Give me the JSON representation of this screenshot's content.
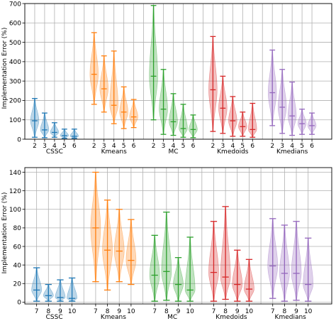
{
  "chart_data": [
    {
      "type": "violin",
      "title": "",
      "xlabel": "",
      "ylabel": "Implementation Error (%)",
      "ylim": [
        0,
        700
      ],
      "yticks": [
        0,
        100,
        200,
        300,
        400,
        500,
        600,
        700
      ],
      "grid": true,
      "methods": [
        "CSSC",
        "Kmeans",
        "MC",
        "Kmedoids",
        "Kmedians"
      ],
      "colors": [
        "#1f77b4",
        "#ff7f0e",
        "#2ca02c",
        "#d62728",
        "#9467bd"
      ],
      "x_values": [
        "2",
        "3",
        "4",
        "5",
        "6"
      ],
      "violins": [
        [
          {
            "min": 10,
            "med": 95,
            "max": 210
          },
          {
            "min": 8,
            "med": 48,
            "max": 135
          },
          {
            "min": 10,
            "med": 35,
            "max": 85
          },
          {
            "min": 5,
            "med": 18,
            "max": 52
          },
          {
            "min": 5,
            "med": 15,
            "max": 52
          }
        ],
        [
          {
            "min": 180,
            "med": 335,
            "max": 550
          },
          {
            "min": 140,
            "med": 260,
            "max": 430
          },
          {
            "min": 80,
            "med": 175,
            "max": 455
          },
          {
            "min": 55,
            "med": 140,
            "max": 270
          },
          {
            "min": 60,
            "med": 115,
            "max": 205
          }
        ],
        [
          {
            "min": 100,
            "med": 325,
            "max": 690
          },
          {
            "min": 25,
            "med": 155,
            "max": 360
          },
          {
            "min": 20,
            "med": 90,
            "max": 235
          },
          {
            "min": 10,
            "med": 55,
            "max": 180
          },
          {
            "min": 8,
            "med": 50,
            "max": 125
          }
        ],
        [
          {
            "min": 40,
            "med": 255,
            "max": 530
          },
          {
            "min": 30,
            "med": 160,
            "max": 325
          },
          {
            "min": 15,
            "med": 95,
            "max": 220
          },
          {
            "min": 15,
            "med": 65,
            "max": 140
          },
          {
            "min": 10,
            "med": 50,
            "max": 185
          }
        ],
        [
          {
            "min": 70,
            "med": 240,
            "max": 460
          },
          {
            "min": 30,
            "med": 165,
            "max": 360
          },
          {
            "min": 20,
            "med": 120,
            "max": 295
          },
          {
            "min": 25,
            "med": 80,
            "max": 155
          },
          {
            "min": 25,
            "med": 70,
            "max": 135
          }
        ]
      ]
    },
    {
      "type": "violin",
      "title": "",
      "xlabel": "",
      "ylabel": "Implementation Error (%)",
      "ylim": [
        -2,
        145
      ],
      "yticks": [
        0,
        20,
        40,
        60,
        80,
        100,
        120,
        140
      ],
      "grid": true,
      "methods": [
        "CSSC",
        "Kmeans",
        "MC",
        "Kmedoids",
        "Kmedians"
      ],
      "colors": [
        "#1f77b4",
        "#ff7f0e",
        "#2ca02c",
        "#d62728",
        "#9467bd"
      ],
      "x_values": [
        "7",
        "8",
        "9",
        "10"
      ],
      "violins": [
        [
          {
            "min": 1,
            "med": 13,
            "max": 37
          },
          {
            "min": 1,
            "med": 7,
            "max": 19
          },
          {
            "min": 1,
            "med": 5,
            "max": 24
          },
          {
            "min": 1,
            "med": 4,
            "max": 26
          }
        ],
        [
          {
            "min": 22,
            "med": 80,
            "max": 140
          },
          {
            "min": 13,
            "med": 56,
            "max": 110
          },
          {
            "min": 22,
            "med": 55,
            "max": 100
          },
          {
            "min": 19,
            "med": 45,
            "max": 89
          }
        ],
        [
          {
            "min": 1,
            "med": 29,
            "max": 72
          },
          {
            "min": 2,
            "med": 33,
            "max": 97
          },
          {
            "min": 1,
            "med": 19,
            "max": 48
          },
          {
            "min": 1,
            "med": 13,
            "max": 70
          }
        ],
        [
          {
            "min": 1,
            "med": 32,
            "max": 87
          },
          {
            "min": 3,
            "med": 27,
            "max": 103
          },
          {
            "min": 1,
            "med": 19,
            "max": 56
          },
          {
            "min": 1,
            "med": 14,
            "max": 46
          }
        ],
        [
          {
            "min": 4,
            "med": 39,
            "max": 90
          },
          {
            "min": 1,
            "med": 31,
            "max": 83
          },
          {
            "min": 2,
            "med": 31,
            "max": 87
          },
          {
            "min": 1,
            "med": 19,
            "max": 69
          }
        ]
      ]
    }
  ]
}
